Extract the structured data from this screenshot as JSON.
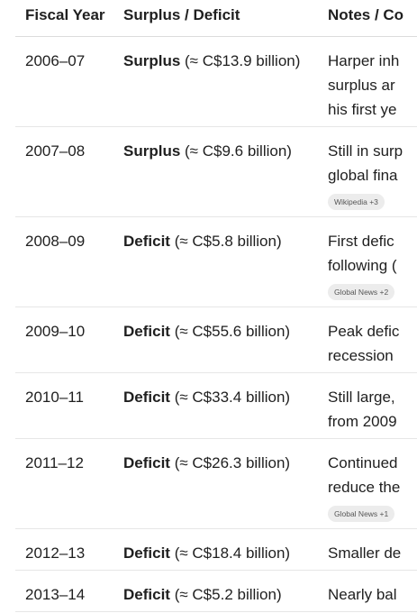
{
  "headers": {
    "year": "Fiscal Year",
    "status": "Surplus / Deficit",
    "notes": "Notes / Co"
  },
  "rows": [
    {
      "year": "2006–07",
      "kind": "Surplus",
      "amount": " (≈ C$13.9 billion)",
      "notes": [
        "Harper inh",
        "surplus ar",
        "his first ye"
      ],
      "chip": ""
    },
    {
      "year": "2007–08",
      "kind": "Surplus",
      "amount": " (≈ C$9.6 billion)",
      "notes": [
        "Still in surp",
        "global fina"
      ],
      "chip": "Wikipedia +3"
    },
    {
      "year": "2008–09",
      "kind": "Deficit",
      "amount": " (≈ C$5.8 billion)",
      "notes": [
        "First defic",
        "following ("
      ],
      "chip": "Global News +2"
    },
    {
      "year": "2009–10",
      "kind": "Deficit",
      "amount": " (≈ C$55.6 billion)",
      "notes": [
        "Peak defic",
        "recession"
      ],
      "chip": ""
    },
    {
      "year": "2010–11",
      "kind": "Deficit",
      "amount": " (≈ C$33.4 billion)",
      "notes": [
        "Still large,",
        "from 2009"
      ],
      "chip": ""
    },
    {
      "year": "2011–12",
      "kind": "Deficit",
      "amount": " (≈ C$26.3 billion)",
      "notes": [
        "Continued",
        "reduce the"
      ],
      "chip": "Global News +1"
    },
    {
      "year": "2012–13",
      "kind": "Deficit",
      "amount": " (≈ C$18.4 billion)",
      "notes": [
        "Smaller de"
      ],
      "chip": ""
    },
    {
      "year": "2013–14",
      "kind": "Deficit",
      "amount": " (≈ C$5.2 billion)",
      "notes": [
        "Nearly bal"
      ],
      "chip": ""
    }
  ]
}
